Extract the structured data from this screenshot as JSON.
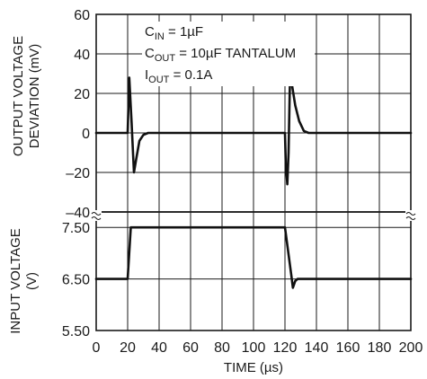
{
  "chart_data": {
    "type": "line",
    "x": {
      "label": "TIME (µs)",
      "range": [
        0,
        200
      ],
      "ticks": [
        0,
        20,
        40,
        60,
        80,
        100,
        120,
        140,
        160,
        180,
        200
      ],
      "tick_labels": [
        "0",
        "20",
        "40",
        "60",
        "80",
        "100",
        "120",
        "140",
        "160",
        "180",
        "200"
      ]
    },
    "grid": true,
    "annotation": {
      "cin": {
        "base": "C",
        "sub": "IN",
        "rest": " = 1µF"
      },
      "cout": {
        "base": "C",
        "sub": "OUT",
        "rest": " = 10µF TANTALUM"
      },
      "iout": {
        "base": "I",
        "sub": "OUT",
        "rest": " = 0.1A"
      }
    },
    "panels": [
      {
        "id": "top",
        "ylabel_lines": [
          "OUTPUT VOLTAGE",
          "DEVIATION (mV)"
        ],
        "ylim": [
          -40,
          60
        ],
        "yticks": [
          60,
          40,
          20,
          0,
          -20,
          -40
        ],
        "ytick_labels": [
          "60",
          "40",
          "20",
          "0",
          "–20",
          "–40"
        ],
        "series": [
          {
            "points": [
              [
                0,
                0
              ],
              [
                20,
                0
              ],
              [
                21,
                28
              ],
              [
                22.5,
                5
              ],
              [
                24,
                -20
              ],
              [
                25.5,
                -13
              ],
              [
                27.5,
                -4
              ],
              [
                30,
                -1
              ],
              [
                33,
                0
              ],
              [
                120,
                0
              ],
              [
                120.5,
                -16
              ],
              [
                121.5,
                -26
              ],
              [
                122.3,
                -10
              ],
              [
                123.2,
                28
              ],
              [
                124.5,
                24
              ],
              [
                126.5,
                14
              ],
              [
                129,
                6
              ],
              [
                132,
                1
              ],
              [
                135,
                0
              ],
              [
                200,
                0
              ]
            ]
          }
        ]
      },
      {
        "id": "bottom",
        "ylabel_lines": [
          "INPUT VOLTAGE",
          "(V)"
        ],
        "ylim": [
          5.5,
          7.8
        ],
        "yticks": [
          7.5,
          6.5,
          5.5
        ],
        "ytick_labels": [
          "7.50",
          "6.50",
          "5.50"
        ],
        "series": [
          {
            "points": [
              [
                0,
                6.5
              ],
              [
                20,
                6.5
              ],
              [
                22,
                7.5
              ],
              [
                120,
                7.5
              ],
              [
                124,
                6.58
              ],
              [
                125,
                6.33
              ],
              [
                126.5,
                6.46
              ],
              [
                128,
                6.5
              ],
              [
                200,
                6.5
              ]
            ]
          }
        ]
      }
    ]
  }
}
